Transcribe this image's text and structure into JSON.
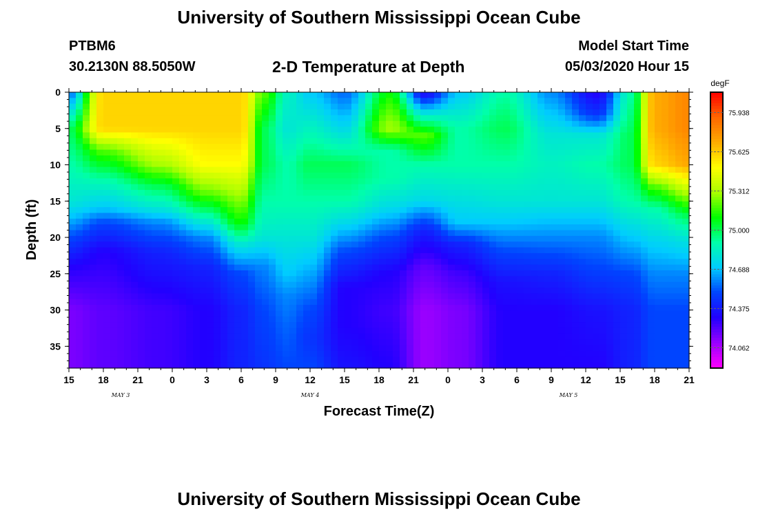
{
  "header": {
    "title": "University of Southern Mississippi Ocean Cube",
    "footer_title": "University of Southern Mississippi Ocean Cube",
    "station": "PTBM6",
    "location": "30.2130N 88.5050W",
    "subtitle": "2-D Temperature at Depth",
    "model_start_label": "Model Start Time",
    "model_start_value": "05/03/2020 Hour 15"
  },
  "chart_data": {
    "type": "heatmap",
    "title": "2-D Temperature at Depth",
    "xlabel": "Forecast Time(Z)",
    "ylabel": "Depth (ft)",
    "colorbar_unit": "degF",
    "x_hours": [
      0,
      54
    ],
    "y_range": [
      0,
      38
    ],
    "x_tick_labels": [
      "15",
      "18",
      "21",
      "0",
      "3",
      "6",
      "9",
      "12",
      "15",
      "18",
      "21",
      "0",
      "3",
      "6",
      "9",
      "12",
      "15",
      "18",
      "21"
    ],
    "date_labels": [
      {
        "label": "MAY 3",
        "hour": 4.5
      },
      {
        "label": "MAY 4",
        "hour": 21
      },
      {
        "label": "MAY 5",
        "hour": 43.5
      }
    ],
    "y_ticks": [
      0,
      5,
      10,
      15,
      20,
      25,
      30,
      35
    ],
    "colorbar": {
      "range": [
        73.9,
        76.1
      ],
      "tick_values": [
        75.938,
        75.625,
        75.312,
        75.0,
        74.688,
        74.375,
        74.062
      ],
      "tick_labels": [
        "75.938",
        "75.625",
        "75.312",
        "75.000",
        "74.688",
        "74.375",
        "74.062"
      ]
    },
    "colors": {
      "colormap": [
        "#ff00ff",
        "#9900ff",
        "#2200ff",
        "#0044ff",
        "#00ccff",
        "#00ffaa",
        "#00ff00",
        "#aaff00",
        "#ffff00",
        "#ffaa00",
        "#ff6600",
        "#ff0000"
      ]
    },
    "temperature_profiles": [
      {
        "hour": 0,
        "depths": [
          0,
          5,
          10,
          15,
          17,
          20,
          24,
          30,
          38
        ],
        "temps": [
          74.55,
          75.0,
          74.9,
          74.8,
          74.7,
          74.5,
          74.3,
          74.15,
          74.15
        ]
      },
      {
        "hour": 3,
        "depths": [
          0,
          5,
          8,
          12,
          16,
          18,
          22,
          30,
          38
        ],
        "temps": [
          75.6,
          75.6,
          75.2,
          74.9,
          74.7,
          74.5,
          74.3,
          74.2,
          74.2
        ]
      },
      {
        "hour": 8,
        "depths": [
          0,
          5,
          10,
          13,
          16,
          18,
          22,
          30,
          38
        ],
        "temps": [
          75.6,
          75.6,
          75.3,
          75.0,
          74.8,
          74.6,
          74.4,
          74.25,
          74.25
        ]
      },
      {
        "hour": 12,
        "depths": [
          0,
          5,
          10,
          14,
          17,
          20,
          24,
          30,
          38
        ],
        "temps": [
          75.6,
          75.6,
          75.5,
          75.2,
          74.9,
          74.6,
          74.4,
          74.3,
          74.3
        ]
      },
      {
        "hour": 15,
        "depths": [
          0,
          5,
          10,
          14,
          18,
          21,
          25,
          30,
          38
        ],
        "temps": [
          75.6,
          75.6,
          75.5,
          75.3,
          75.1,
          74.8,
          74.5,
          74.4,
          74.4
        ]
      },
      {
        "hour": 17,
        "depths": [
          0,
          5,
          10,
          15,
          18,
          20,
          24,
          30,
          38
        ],
        "temps": [
          75.2,
          75.0,
          75.0,
          74.9,
          74.85,
          74.8,
          74.6,
          74.5,
          74.45
        ]
      },
      {
        "hour": 19,
        "depths": [
          0,
          5,
          10,
          15,
          20,
          25,
          28,
          32,
          38
        ],
        "temps": [
          74.85,
          74.8,
          74.9,
          74.9,
          74.8,
          74.7,
          74.6,
          74.55,
          74.5
        ]
      },
      {
        "hour": 21,
        "depths": [
          0,
          5,
          10,
          15,
          20,
          25,
          30,
          34,
          38
        ],
        "temps": [
          74.7,
          74.85,
          75.0,
          74.9,
          74.8,
          74.65,
          74.5,
          74.45,
          74.5
        ]
      },
      {
        "hour": 24,
        "depths": [
          0,
          5,
          10,
          15,
          18,
          22,
          27,
          32,
          38
        ],
        "temps": [
          74.55,
          74.75,
          75.0,
          74.9,
          74.75,
          74.5,
          74.3,
          74.3,
          74.35
        ]
      },
      {
        "hour": 28,
        "depths": [
          0,
          5,
          8,
          12,
          16,
          20,
          25,
          30,
          38
        ],
        "temps": [
          75.1,
          75.3,
          74.9,
          74.9,
          74.75,
          74.5,
          74.3,
          74.25,
          74.3
        ]
      },
      {
        "hour": 31,
        "depths": [
          0,
          3,
          6,
          10,
          15,
          19,
          24,
          30,
          38
        ],
        "temps": [
          74.3,
          74.8,
          75.2,
          74.9,
          74.75,
          74.4,
          74.2,
          74.1,
          74.1
        ]
      },
      {
        "hour": 34,
        "depths": [
          0,
          5,
          10,
          14,
          18,
          21,
          25,
          30,
          38
        ],
        "temps": [
          74.7,
          74.9,
          74.9,
          74.8,
          74.7,
          74.4,
          74.25,
          74.15,
          74.15
        ]
      },
      {
        "hour": 38,
        "depths": [
          0,
          5,
          10,
          15,
          18,
          22,
          26,
          30,
          38
        ],
        "temps": [
          74.9,
          75.0,
          74.9,
          74.8,
          74.7,
          74.5,
          74.35,
          74.3,
          74.3
        ]
      },
      {
        "hour": 42,
        "depths": [
          0,
          3,
          6,
          10,
          15,
          20,
          25,
          30,
          38
        ],
        "temps": [
          74.6,
          74.7,
          74.8,
          74.85,
          74.8,
          74.6,
          74.4,
          74.3,
          74.3
        ]
      },
      {
        "hour": 46,
        "depths": [
          0,
          3,
          6,
          10,
          15,
          20,
          24,
          30,
          38
        ],
        "temps": [
          74.3,
          74.45,
          74.8,
          74.9,
          74.8,
          74.6,
          74.5,
          74.35,
          74.3
        ]
      },
      {
        "hour": 49,
        "depths": [
          0,
          3,
          6,
          10,
          15,
          20,
          25,
          30,
          38
        ],
        "temps": [
          74.9,
          74.95,
          75.0,
          75.0,
          74.9,
          74.7,
          74.5,
          74.4,
          74.4
        ]
      },
      {
        "hour": 51,
        "depths": [
          0,
          5,
          10,
          13,
          16,
          20,
          25,
          30,
          38
        ],
        "temps": [
          75.7,
          75.7,
          75.6,
          75.2,
          74.9,
          74.75,
          74.6,
          74.5,
          74.5
        ]
      },
      {
        "hour": 54,
        "depths": [
          0,
          5,
          10,
          14,
          17,
          20,
          25,
          30,
          38
        ],
        "temps": [
          75.8,
          75.8,
          75.7,
          75.3,
          75.0,
          74.8,
          74.6,
          74.5,
          74.5
        ]
      }
    ]
  }
}
